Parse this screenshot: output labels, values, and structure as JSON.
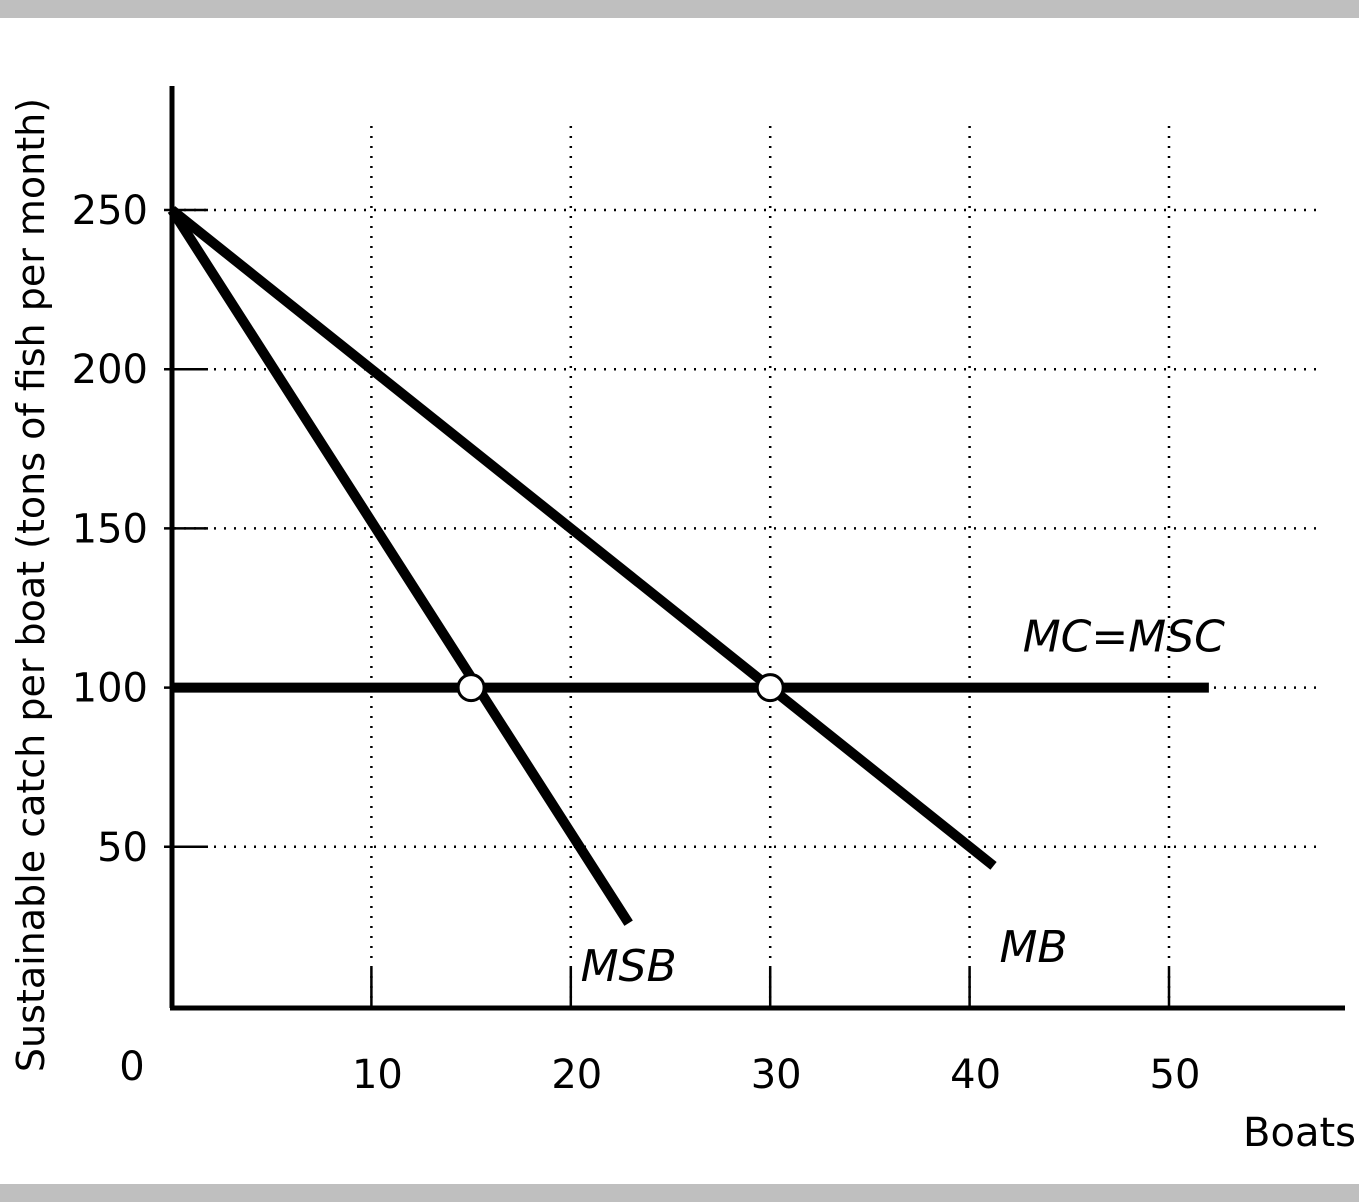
{
  "chart_data": {
    "type": "line",
    "title": "",
    "xlabel": "Boats",
    "ylabel": "Sustainable catch per boat (tons of fish per month)",
    "origin_label": "0",
    "xlim": [
      0,
      58
    ],
    "ylim": [
      0,
      290
    ],
    "x_ticks": [
      10,
      20,
      30,
      40,
      50
    ],
    "x_tick_labels": [
      "10",
      "20",
      "30",
      "40",
      "50"
    ],
    "y_ticks": [
      50,
      100,
      150,
      200,
      250
    ],
    "y_tick_labels": [
      "50",
      "100",
      "150",
      "200",
      "250"
    ],
    "grid": "dotted",
    "series": [
      {
        "name": "MSB",
        "points": [
          [
            0,
            250
          ],
          [
            22.9,
            26
          ]
        ]
      },
      {
        "name": "MB",
        "points": [
          [
            0,
            250
          ],
          [
            41.2,
            44
          ]
        ]
      },
      {
        "name": "MC=MSC",
        "points": [
          [
            0,
            100
          ],
          [
            52,
            100
          ]
        ]
      }
    ],
    "markers": [
      {
        "x": 15,
        "y": 100
      },
      {
        "x": 30,
        "y": 100
      }
    ],
    "colors": {
      "line": "#000000",
      "band": "#bfbfbf",
      "background": "#ffffff"
    }
  }
}
